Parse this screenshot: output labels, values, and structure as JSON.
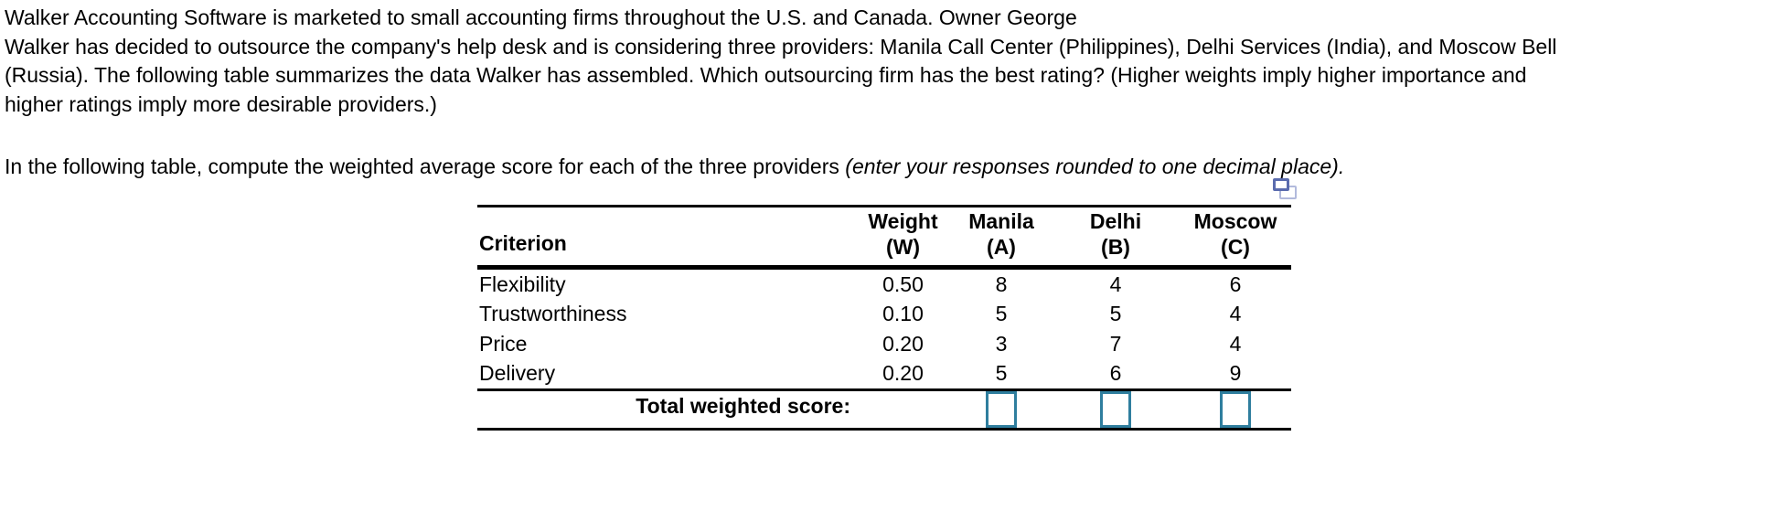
{
  "question": {
    "lines": [
      "Walker Accounting Software is marketed to small accounting firms throughout the U.S. and Canada. Owner George",
      "Walker has decided to outsource the company's help desk and is considering three providers: Manila Call Center (Philippines), Delhi Services (India), and Moscow Bell",
      "(Russia). The following table summarizes the data Walker has assembled. Which outsourcing firm has the best rating? (Higher weights imply higher importance and",
      "higher ratings imply more desirable providers.)"
    ],
    "instruction_normal": "In the following table, compute the weighted average score for each of the three providers ",
    "instruction_italic": "(enter your responses rounded to one decimal place)."
  },
  "table": {
    "criterion_header": "Criterion",
    "columns": [
      {
        "line1": "Weight",
        "line2": "(W)"
      },
      {
        "line1": "Manila",
        "line2": "(A)"
      },
      {
        "line1": "Delhi",
        "line2": "(B)"
      },
      {
        "line1": "Moscow",
        "line2": "(C)"
      }
    ],
    "rows": [
      {
        "label": "Flexibility",
        "values": [
          "0.50",
          "8",
          "4",
          "6"
        ]
      },
      {
        "label": "Trustworthiness",
        "values": [
          "0.10",
          "5",
          "5",
          "4"
        ]
      },
      {
        "label": "Price",
        "values": [
          "0.20",
          "3",
          "7",
          "4"
        ]
      },
      {
        "label": "Delivery",
        "values": [
          "0.20",
          "5",
          "6",
          "9"
        ]
      }
    ],
    "total_label": "Total weighted score:",
    "inputs": [
      {
        "provider": "Manila (A)",
        "value": ""
      },
      {
        "provider": "Delhi (B)",
        "value": ""
      },
      {
        "provider": "Moscow (C)",
        "value": ""
      }
    ],
    "icon": "duplicate-question-icon"
  },
  "colors": {
    "background": "#ffffff",
    "text": "#000000",
    "rule": "#000000",
    "input_border": "#2f7e9e",
    "icon_front_border": "#5b6cae",
    "icon_back_border": "#b2badc"
  }
}
